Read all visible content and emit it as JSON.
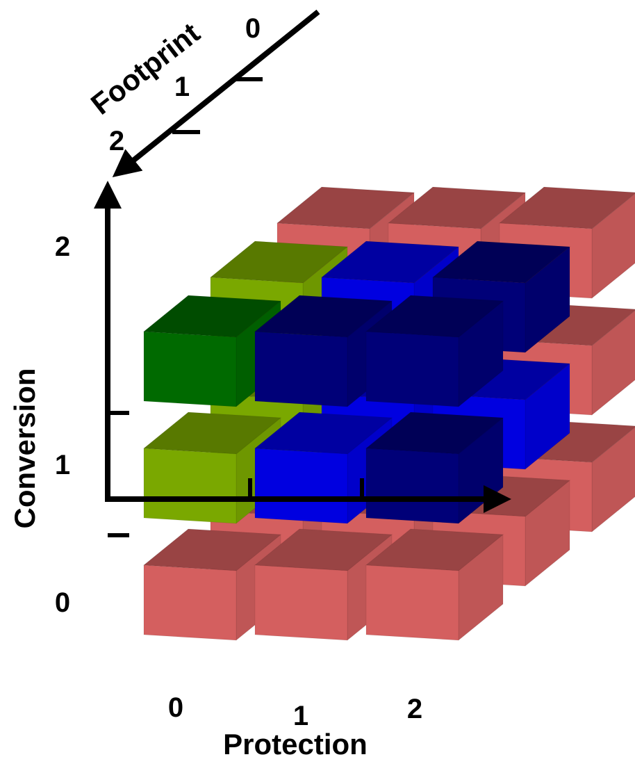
{
  "axes": {
    "protection": {
      "title": "Protection",
      "ticks": [
        "0",
        "1",
        "2"
      ]
    },
    "conversion": {
      "title": "Conversion",
      "ticks": [
        "0",
        "1",
        "2"
      ]
    },
    "footprint": {
      "title": "Footprint",
      "ticks": [
        "0",
        "1",
        "2"
      ]
    }
  },
  "palette": {
    "salmon": "#d45f5f",
    "olive": "#7aa800",
    "green": "#006a00",
    "blue": "#0000e0",
    "navy": "#000078"
  },
  "cubes": [
    {
      "protection": 0,
      "conversion": 0,
      "footprint": 0,
      "color": "salmon"
    },
    {
      "protection": 1,
      "conversion": 0,
      "footprint": 0,
      "color": "salmon"
    },
    {
      "protection": 2,
      "conversion": 0,
      "footprint": 0,
      "color": "salmon"
    },
    {
      "protection": 0,
      "conversion": 0,
      "footprint": 1,
      "color": "salmon"
    },
    {
      "protection": 1,
      "conversion": 0,
      "footprint": 1,
      "color": "salmon"
    },
    {
      "protection": 2,
      "conversion": 0,
      "footprint": 1,
      "color": "salmon"
    },
    {
      "protection": 0,
      "conversion": 0,
      "footprint": 2,
      "color": "salmon"
    },
    {
      "protection": 1,
      "conversion": 0,
      "footprint": 2,
      "color": "salmon"
    },
    {
      "protection": 2,
      "conversion": 0,
      "footprint": 2,
      "color": "salmon"
    },
    {
      "protection": 0,
      "conversion": 1,
      "footprint": 0,
      "color": "salmon"
    },
    {
      "protection": 1,
      "conversion": 1,
      "footprint": 0,
      "color": "salmon"
    },
    {
      "protection": 2,
      "conversion": 1,
      "footprint": 0,
      "color": "salmon"
    },
    {
      "protection": 0,
      "conversion": 1,
      "footprint": 1,
      "color": "olive"
    },
    {
      "protection": 1,
      "conversion": 1,
      "footprint": 1,
      "color": "blue"
    },
    {
      "protection": 2,
      "conversion": 1,
      "footprint": 1,
      "color": "blue"
    },
    {
      "protection": 0,
      "conversion": 1,
      "footprint": 2,
      "color": "olive"
    },
    {
      "protection": 1,
      "conversion": 1,
      "footprint": 2,
      "color": "blue"
    },
    {
      "protection": 2,
      "conversion": 1,
      "footprint": 2,
      "color": "navy"
    },
    {
      "protection": 0,
      "conversion": 2,
      "footprint": 0,
      "color": "salmon"
    },
    {
      "protection": 1,
      "conversion": 2,
      "footprint": 0,
      "color": "salmon"
    },
    {
      "protection": 2,
      "conversion": 2,
      "footprint": 0,
      "color": "salmon"
    },
    {
      "protection": 0,
      "conversion": 2,
      "footprint": 1,
      "color": "olive"
    },
    {
      "protection": 1,
      "conversion": 2,
      "footprint": 1,
      "color": "blue"
    },
    {
      "protection": 2,
      "conversion": 2,
      "footprint": 1,
      "color": "navy"
    },
    {
      "protection": 0,
      "conversion": 2,
      "footprint": 2,
      "color": "green"
    },
    {
      "protection": 1,
      "conversion": 2,
      "footprint": 2,
      "color": "navy"
    },
    {
      "protection": 2,
      "conversion": 2,
      "footprint": 2,
      "color": "navy"
    }
  ]
}
